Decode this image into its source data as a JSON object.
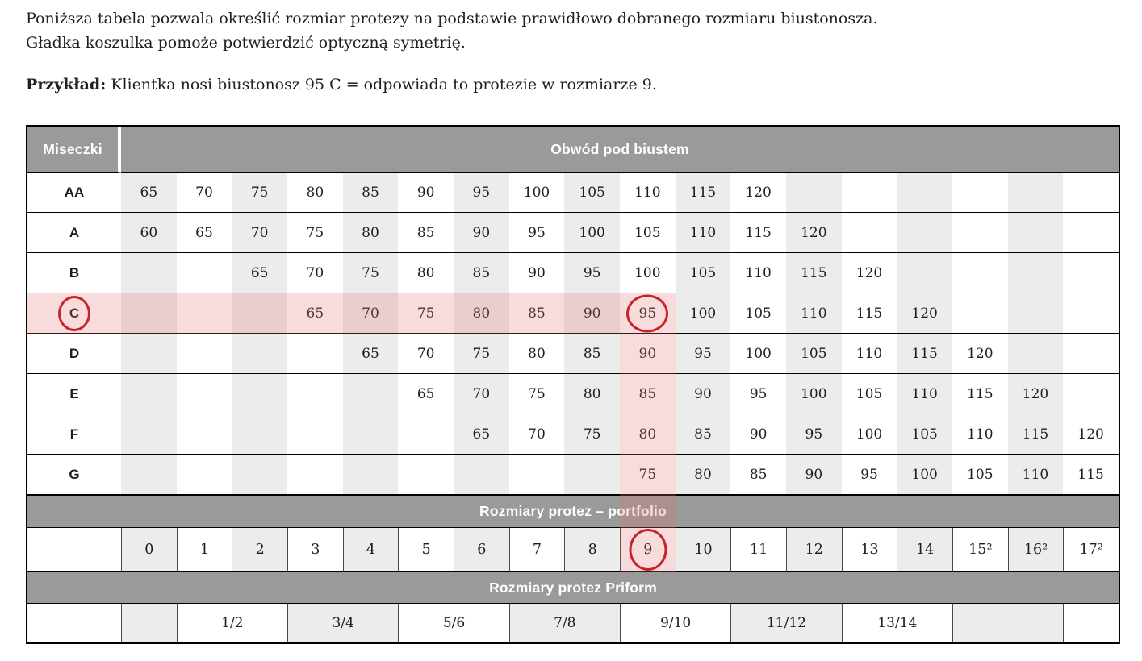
{
  "intro": {
    "line1": "Poniższa tabela pozwala określić rozmiar protezy na podstawie prawidłowo dobranego rozmiaru biustonosza.",
    "line2": "Gładka koszulka pomoże potwierdzić optyczną symetrię.",
    "example_label": "Przykład:",
    "example_text": " Klientka nosi biustonosz 95 C = odpowiada to protezie w rozmiarze 9."
  },
  "table": {
    "corner_header": "Miseczki",
    "underbust_header": "Obwód pod biustem",
    "cup_rows": [
      {
        "cup": "AA",
        "values": [
          "65",
          "70",
          "75",
          "80",
          "85",
          "90",
          "95",
          "100",
          "105",
          "110",
          "115",
          "120",
          "",
          "",
          "",
          "",
          "",
          ""
        ]
      },
      {
        "cup": "A",
        "values": [
          "60",
          "65",
          "70",
          "75",
          "80",
          "85",
          "90",
          "95",
          "100",
          "105",
          "110",
          "115",
          "120",
          "",
          "",
          "",
          "",
          ""
        ]
      },
      {
        "cup": "B",
        "values": [
          "",
          "",
          "65",
          "70",
          "75",
          "80",
          "85",
          "90",
          "95",
          "100",
          "105",
          "110",
          "115",
          "120",
          "",
          "",
          "",
          ""
        ]
      },
      {
        "cup": "C",
        "values": [
          "",
          "",
          "",
          "65",
          "70",
          "75",
          "80",
          "85",
          "90",
          "95",
          "100",
          "105",
          "110",
          "115",
          "120",
          "",
          "",
          ""
        ]
      },
      {
        "cup": "D",
        "values": [
          "",
          "",
          "",
          "",
          "65",
          "70",
          "75",
          "80",
          "85",
          "90",
          "95",
          "100",
          "105",
          "110",
          "115",
          "120",
          "",
          ""
        ]
      },
      {
        "cup": "E",
        "values": [
          "",
          "",
          "",
          "",
          "",
          "65",
          "70",
          "75",
          "80",
          "85",
          "90",
          "95",
          "100",
          "105",
          "110",
          "115",
          "120",
          ""
        ]
      },
      {
        "cup": "F",
        "values": [
          "",
          "",
          "",
          "",
          "",
          "",
          "65",
          "70",
          "75",
          "80",
          "85",
          "90",
          "95",
          "100",
          "105",
          "110",
          "115",
          "120"
        ]
      },
      {
        "cup": "G",
        "values": [
          "",
          "",
          "",
          "",
          "",
          "",
          "",
          "",
          "",
          "75",
          "80",
          "85",
          "90",
          "95",
          "100",
          "105",
          "110",
          "115"
        ]
      }
    ],
    "portfolio_header": "Rozmiary protez – portfolio",
    "portfolio_sizes": [
      "0",
      "1",
      "2",
      "3",
      "4",
      "5",
      "6",
      "7",
      "8",
      "9",
      "10",
      "11",
      "12",
      "13",
      "14",
      "15²",
      "16²",
      "17²"
    ],
    "priform_header": "Rozmiary protez Priform",
    "priform_cells": [
      {
        "label": "",
        "span": 1
      },
      {
        "label": "1/2",
        "span": 2
      },
      {
        "label": "3/4",
        "span": 2
      },
      {
        "label": "5/6",
        "span": 2
      },
      {
        "label": "7/8",
        "span": 2
      },
      {
        "label": "9/10",
        "span": 2
      },
      {
        "label": "11/12",
        "span": 2
      },
      {
        "label": "13/14",
        "span": 2
      },
      {
        "label": "",
        "span": 2
      },
      {
        "label": "",
        "span": 1
      }
    ],
    "highlight": {
      "cup": "C",
      "circled_underbust": "95",
      "circled_size": "9",
      "column_index": 9
    }
  },
  "colors": {
    "band_gray": "#9a9a9a",
    "alt_gray": "#ececec",
    "highlight_pink": "rgba(227,110,110,0.25)",
    "circle_red": "#c9232a",
    "border_line": "#000000",
    "text": "#1d1d1d"
  }
}
